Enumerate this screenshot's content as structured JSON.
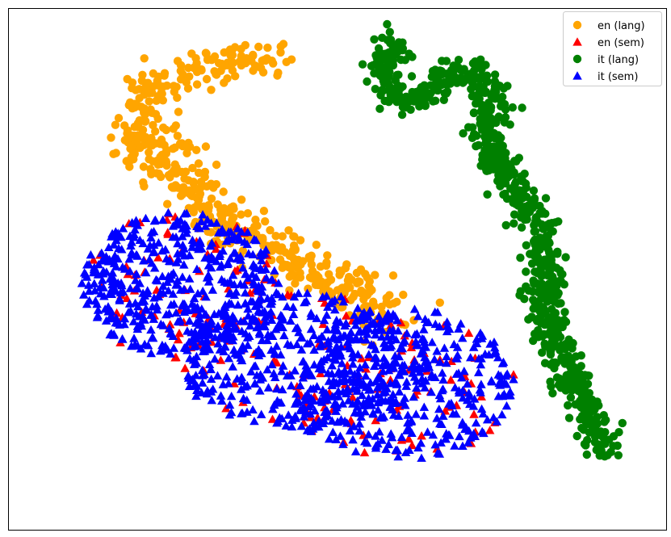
{
  "chart_data": {
    "type": "scatter",
    "title": "",
    "xlabel": "",
    "ylabel": "",
    "axes_ticks": "none",
    "grid": false,
    "legend_position": "top-right",
    "xlim": [
      -100,
      100
    ],
    "ylim": [
      -100,
      100
    ],
    "series": [
      {
        "name": "en (lang)",
        "marker": "circle",
        "color": "#ffa500",
        "distribution": [
          {
            "curve": [
              [
                -62,
                44
              ],
              [
                -60,
                55
              ],
              [
                -58,
                68
              ],
              [
                -50,
                74
              ],
              [
                -38,
                77
              ],
              [
                -26,
                80
              ],
              [
                -18,
                82
              ]
            ],
            "n": 170,
            "spread": 3.5
          },
          {
            "curve": [
              [
                -58,
                54
              ],
              [
                -50,
                38
              ],
              [
                -42,
                27
              ],
              [
                -30,
                14
              ],
              [
                -18,
                6
              ],
              [
                -8,
                -2
              ],
              [
                2,
                -8
              ],
              [
                10,
                -12
              ],
              [
                18,
                -18
              ]
            ],
            "n": 360,
            "spread": 4.6
          }
        ]
      },
      {
        "name": "en (sem)",
        "marker": "triangle",
        "color": "#ff0000",
        "distribution": [
          {
            "ellipse": {
              "cx": -48,
              "cy": -6,
              "rx": 30,
              "ry": 28
            },
            "n": 70
          },
          {
            "ellipse": {
              "cx": -10,
              "cy": -36,
              "rx": 38,
              "ry": 27
            },
            "n": 60
          },
          {
            "ellipse": {
              "cx": 20,
              "cy": -44,
              "rx": 34,
              "ry": 29
            },
            "n": 55
          }
        ]
      },
      {
        "name": "it (lang)",
        "marker": "circle",
        "color": "#008000",
        "distribution": [
          {
            "curve": [
              [
                16,
                89
              ],
              [
                15,
                78
              ],
              [
                16,
                68
              ],
              [
                20,
                64
              ],
              [
                26,
                67
              ],
              [
                32,
                73
              ],
              [
                40,
                77
              ],
              [
                45,
                74
              ],
              [
                47,
                62
              ],
              [
                44,
                52
              ],
              [
                46,
                42
              ],
              [
                52,
                36
              ],
              [
                57,
                24
              ],
              [
                62,
                14
              ],
              [
                63,
                0
              ],
              [
                62,
                -14
              ],
              [
                66,
                -30
              ],
              [
                72,
                -44
              ],
              [
                78,
                -58
              ],
              [
                82,
                -70
              ]
            ],
            "n": 800,
            "spread": 2.8
          }
        ]
      },
      {
        "name": "it (sem)",
        "marker": "triangle",
        "color": "#0000ff",
        "distribution": [
          {
            "ellipse": {
              "cx": -48,
              "cy": -6,
              "rx": 30,
              "ry": 28
            },
            "n": 470
          },
          {
            "ellipse": {
              "cx": -10,
              "cy": -36,
              "rx": 38,
              "ry": 27
            },
            "n": 430
          },
          {
            "ellipse": {
              "cx": 20,
              "cy": -44,
              "rx": 34,
              "ry": 29
            },
            "n": 350
          }
        ]
      }
    ]
  }
}
